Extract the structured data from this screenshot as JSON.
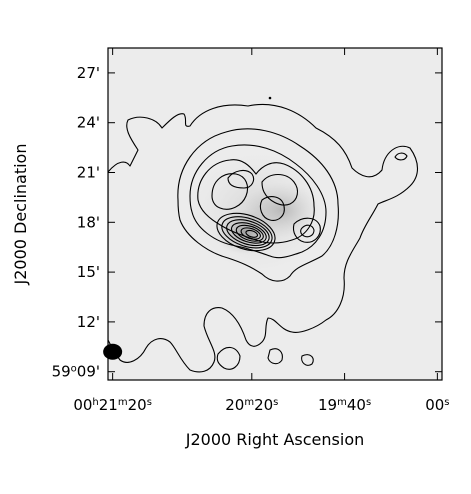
{
  "chart_data": {
    "type": "contour",
    "xlabel": "J2000 Right Ascension",
    "ylabel": "J2000 Declination",
    "x_ticks": [
      {
        "label": "00h21m20s",
        "parts": [
          [
            "00",
            "n"
          ],
          [
            "h",
            "s"
          ],
          [
            "21",
            "n"
          ],
          [
            "m",
            "s"
          ],
          [
            "20",
            "n"
          ],
          [
            "s",
            "s"
          ]
        ],
        "ra_seconds": 80
      },
      {
        "label": "20m20s",
        "parts": [
          [
            "20",
            "n"
          ],
          [
            "m",
            "s"
          ],
          [
            "20",
            "n"
          ],
          [
            "s",
            "s"
          ]
        ],
        "ra_seconds": 20
      },
      {
        "label": "19m40s",
        "parts": [
          [
            "19",
            "n"
          ],
          [
            "m",
            "s"
          ],
          [
            "40",
            "n"
          ],
          [
            "s",
            "s"
          ]
        ],
        "ra_seconds": -20
      },
      {
        "label": "00s",
        "parts": [
          [
            "00",
            "n"
          ],
          [
            "s",
            "s"
          ]
        ],
        "ra_seconds": -60
      }
    ],
    "y_ticks": [
      {
        "label": "59°09'",
        "parts": [
          [
            "59",
            "n"
          ],
          [
            "o",
            "s"
          ],
          [
            "09'",
            "n"
          ]
        ],
        "dec_arcmin": 9
      },
      {
        "label": "12'",
        "parts": [
          [
            "12'",
            "n"
          ]
        ],
        "dec_arcmin": 12
      },
      {
        "label": "15'",
        "parts": [
          [
            "15'",
            "n"
          ]
        ],
        "dec_arcmin": 15
      },
      {
        "label": "18'",
        "parts": [
          [
            "18'",
            "n"
          ]
        ],
        "dec_arcmin": 18
      },
      {
        "label": "21'",
        "parts": [
          [
            "21'",
            "n"
          ]
        ],
        "dec_arcmin": 21
      },
      {
        "label": "24'",
        "parts": [
          [
            "24'",
            "n"
          ]
        ],
        "dec_arcmin": 24
      },
      {
        "label": "27'",
        "parts": [
          [
            "27'",
            "n"
          ]
        ],
        "dec_arcmin": 27
      }
    ],
    "xlim_ra_seconds": [
      82,
      -62
    ],
    "ylim_dec_arcmin": [
      8.5,
      28.5
    ],
    "peak": {
      "ra_seconds": 28,
      "dec_arcmin": 17
    },
    "secondary_peak": {
      "ra_seconds": 0,
      "dec_arcmin": 18.5
    },
    "beam": {
      "ra_seconds": 80,
      "dec_arcmin": 10.2
    }
  }
}
